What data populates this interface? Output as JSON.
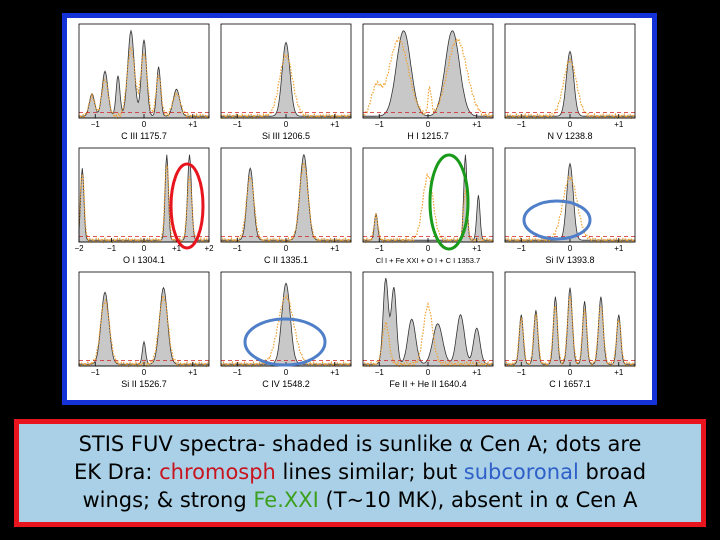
{
  "chart_data": {
    "type": "line",
    "layout": "3x4 grid of spectral line panels",
    "series": [
      {
        "style": "shaded gray area"
      },
      {
        "style": "orange dotted"
      }
    ],
    "panels": [
      {
        "label": "C III 1175.7",
        "ticks": [
          "−1",
          "0",
          "+1"
        ],
        "peaks": [
          [
            -1.6,
            0.25,
            0.08
          ],
          [
            -1.2,
            0.5,
            0.09
          ],
          [
            -0.8,
            0.45,
            0.06
          ],
          [
            -0.4,
            0.95,
            0.1
          ],
          [
            0.0,
            0.85,
            0.08
          ],
          [
            0.45,
            0.55,
            0.06
          ],
          [
            1.0,
            0.3,
            0.1
          ]
        ],
        "dots": [
          [
            -1.6,
            0.22,
            0.09
          ],
          [
            -1.2,
            0.4,
            0.1
          ],
          [
            -0.4,
            0.75,
            0.12
          ],
          [
            0.0,
            0.7,
            0.1
          ],
          [
            0.45,
            0.45,
            0.08
          ],
          [
            1.0,
            0.25,
            0.12
          ]
        ]
      },
      {
        "label": "Si III 1206.5",
        "ticks": [
          "−1",
          "0",
          "+1"
        ],
        "peaks": [
          [
            0.0,
            0.82,
            0.12
          ]
        ],
        "dots": [
          [
            0.0,
            0.68,
            0.2
          ]
        ]
      },
      {
        "label": "H I 1215.7",
        "ticks": [
          "−1",
          "0",
          "+1"
        ],
        "peaks": [
          [
            -0.75,
            0.95,
            0.22
          ],
          [
            0.75,
            0.95,
            0.22
          ]
        ],
        "dots": [
          [
            -0.9,
            0.85,
            0.3
          ],
          [
            0.9,
            0.85,
            0.3
          ],
          [
            -1.6,
            0.3,
            0.15
          ],
          [
            0.05,
            0.3,
            0.05
          ]
        ]
      },
      {
        "label": "N V 1238.8",
        "ticks": [
          "−1",
          "0",
          "+1"
        ],
        "peaks": [
          [
            0.0,
            0.72,
            0.11
          ]
        ],
        "dots": [
          [
            0.0,
            0.62,
            0.2
          ]
        ]
      },
      {
        "label": "O I 1304.1",
        "ticks": [
          "−2",
          "−1",
          "0",
          "+1",
          "+2"
        ],
        "peaks": [
          [
            -1.9,
            0.8,
            0.05
          ],
          [
            0.7,
            0.95,
            0.05
          ],
          [
            1.4,
            0.95,
            0.06
          ]
        ],
        "dots": [
          [
            -1.9,
            0.75,
            0.06
          ],
          [
            0.7,
            0.85,
            0.06
          ],
          [
            1.4,
            0.7,
            0.07
          ]
        ]
      },
      {
        "label": "C II 1335.1",
        "ticks": [
          "−1",
          "0",
          "+1"
        ],
        "peaks": [
          [
            -1.1,
            0.8,
            0.1
          ],
          [
            0.55,
            0.95,
            0.12
          ]
        ],
        "dots": [
          [
            -1.1,
            0.7,
            0.12
          ],
          [
            0.55,
            0.85,
            0.13
          ]
        ]
      },
      {
        "label": "Cl I + Fe XXI + O I + C I 1353.7",
        "ticks": [
          "−1",
          "0",
          "+1"
        ],
        "peaks": [
          [
            -1.6,
            0.3,
            0.05
          ],
          [
            1.15,
            0.95,
            0.05
          ],
          [
            1.55,
            0.5,
            0.05
          ]
        ],
        "dots": [
          [
            -1.6,
            0.28,
            0.06
          ],
          [
            0.0,
            0.72,
            0.16
          ],
          [
            1.15,
            0.55,
            0.06
          ]
        ]
      },
      {
        "label": "Si IV 1393.8",
        "ticks": [
          "−1",
          "0",
          "+1"
        ],
        "peaks": [
          [
            0.0,
            0.85,
            0.1
          ]
        ],
        "dots": [
          [
            0.0,
            0.7,
            0.22
          ]
        ]
      },
      {
        "label": "Si II 1526.7",
        "ticks": [
          "−1",
          "0",
          "+1"
        ],
        "peaks": [
          [
            -1.2,
            0.8,
            0.12
          ],
          [
            0.0,
            0.25,
            0.05
          ],
          [
            0.6,
            0.85,
            0.12
          ]
        ],
        "dots": [
          [
            -1.2,
            0.7,
            0.14
          ],
          [
            0.6,
            0.75,
            0.14
          ]
        ]
      },
      {
        "label": "C IV 1548.2",
        "ticks": [
          "−1",
          "0",
          "+1"
        ],
        "peaks": [
          [
            0.0,
            0.9,
            0.13
          ]
        ],
        "dots": [
          [
            0.0,
            0.75,
            0.24
          ]
        ]
      },
      {
        "label": "Fe II + He II 1640.4",
        "ticks": [
          "−1",
          "0",
          "+1"
        ],
        "peaks": [
          [
            -1.3,
            0.95,
            0.08
          ],
          [
            -1.05,
            0.85,
            0.08
          ],
          [
            -0.5,
            0.5,
            0.12
          ],
          [
            0.3,
            0.45,
            0.15
          ],
          [
            1.0,
            0.55,
            0.12
          ],
          [
            1.5,
            0.4,
            0.1
          ]
        ],
        "dots": [
          [
            0.0,
            0.65,
            0.14
          ],
          [
            -1.3,
            0.45,
            0.1
          ]
        ]
      },
      {
        "label": "C I 1657.1",
        "ticks": [
          "−1",
          "0",
          "+1"
        ],
        "peaks": [
          [
            -1.5,
            0.55,
            0.06
          ],
          [
            -1.05,
            0.6,
            0.06
          ],
          [
            -0.45,
            0.75,
            0.06
          ],
          [
            0.0,
            0.85,
            0.07
          ],
          [
            0.45,
            0.7,
            0.06
          ],
          [
            0.95,
            0.75,
            0.07
          ],
          [
            1.5,
            0.55,
            0.06
          ]
        ],
        "dots": [
          [
            -1.5,
            0.5,
            0.07
          ],
          [
            -1.05,
            0.55,
            0.07
          ],
          [
            -0.45,
            0.65,
            0.07
          ],
          [
            0.0,
            0.75,
            0.08
          ],
          [
            0.45,
            0.6,
            0.07
          ],
          [
            0.95,
            0.65,
            0.08
          ],
          [
            1.5,
            0.5,
            0.07
          ]
        ]
      }
    ],
    "annotations": [
      {
        "shape": "ellipse",
        "color": "#e8141e",
        "panel": 4
      },
      {
        "shape": "ellipse",
        "color": "#1a9a1a",
        "panel": 6
      },
      {
        "shape": "ellipse",
        "color": "#4f7fc8",
        "panel": 7
      },
      {
        "shape": "ellipse",
        "color": "#4f7fc8",
        "panel": 9
      }
    ]
  },
  "caption": {
    "line1": "STIS FUV spectra- shaded is sunlike α Cen A; dots are",
    "line2_a": "EK Dra: ",
    "line2_hl": "chromosph",
    "line2_b": " lines similar; but ",
    "line2_hl2": "subcoronal",
    "line2_c": " broad",
    "line3_a": "wings; & strong ",
    "line3_hl": "Fe.XXI",
    "line3_b": " (T~10 MK), absent in α Cen A"
  },
  "colors": {
    "frame": "#1432d6",
    "caption_border": "#e8141e",
    "caption_bg": "#a9d0e6",
    "shade": "#c8c8c8",
    "dots": "#f0a030"
  }
}
